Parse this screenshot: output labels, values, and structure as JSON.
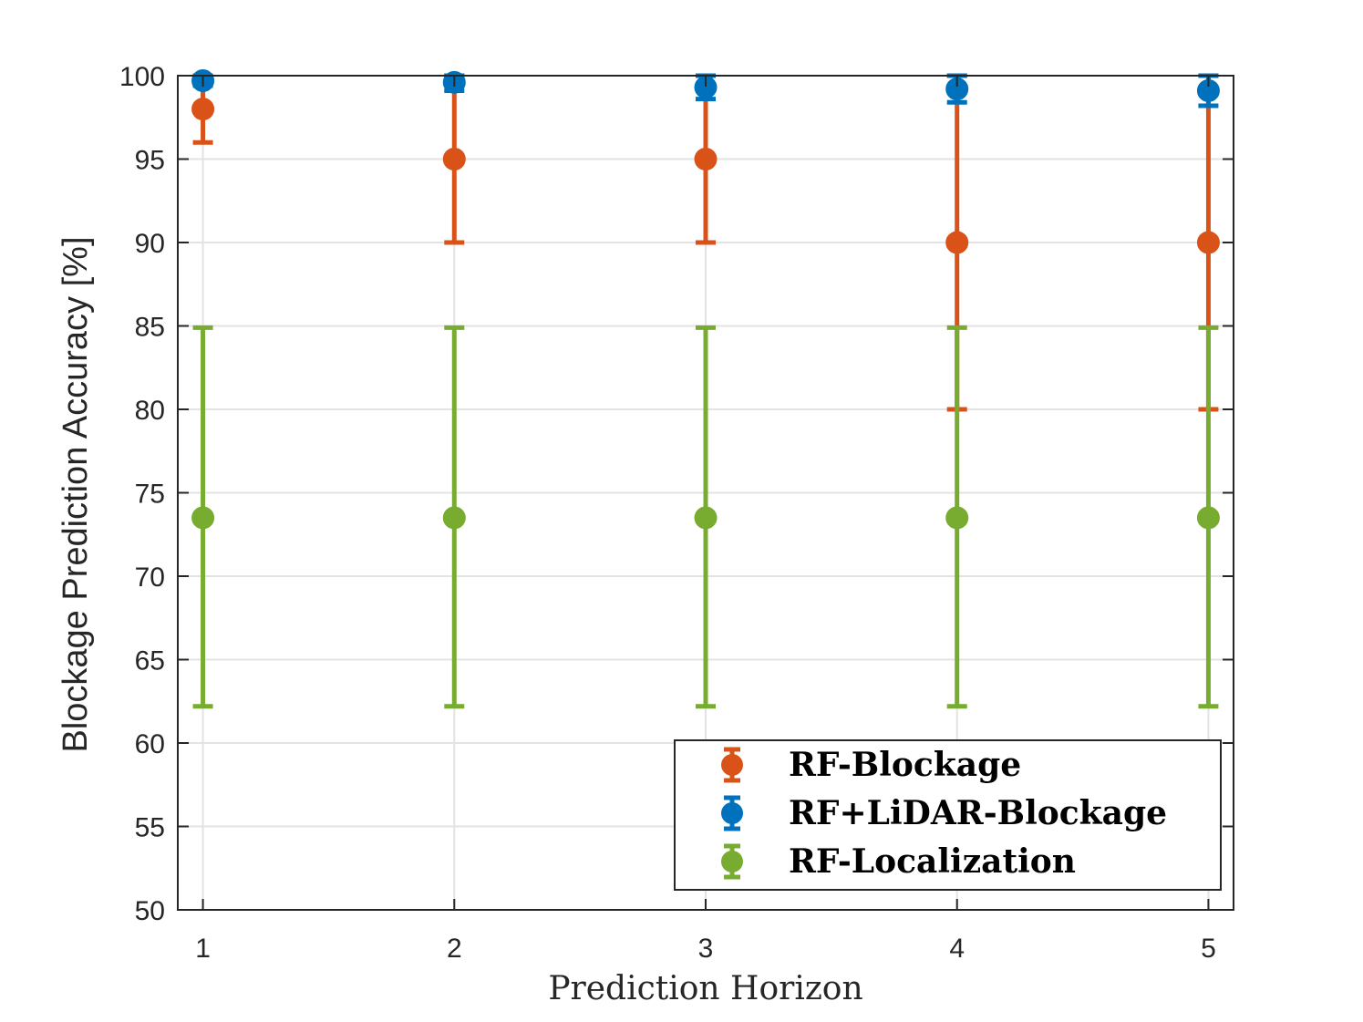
{
  "chart_data": {
    "type": "scatter",
    "title": "",
    "xlabel": "Prediction Horizon",
    "ylabel": "Blockage Prediction Accuracy [%]",
    "x": [
      1,
      2,
      3,
      4,
      5
    ],
    "xlim": [
      0.9,
      5.1
    ],
    "ylim": [
      50,
      100
    ],
    "xticks": [
      "1",
      "2",
      "3",
      "4",
      "5"
    ],
    "yticks": [
      "50",
      "55",
      "60",
      "65",
      "70",
      "75",
      "80",
      "85",
      "90",
      "95",
      "100"
    ],
    "grid": true,
    "legend_position": "bottom-right",
    "series": [
      {
        "name": "RF-Blockage",
        "color": "#D95319",
        "values": [
          98,
          95,
          95,
          90,
          90
        ],
        "lower": [
          96,
          90,
          90,
          80,
          80
        ],
        "upper": [
          100,
          100,
          100,
          100,
          100
        ]
      },
      {
        "name": "RF+LiDAR-Blockage",
        "color": "#0072BD",
        "values": [
          99.7,
          99.6,
          99.3,
          99.2,
          99.1
        ],
        "lower": [
          99.4,
          99.1,
          98.6,
          98.4,
          98.2
        ],
        "upper": [
          100,
          100,
          100,
          100,
          100
        ]
      },
      {
        "name": "RF-Localization",
        "color": "#77AC30",
        "values": [
          73.5,
          73.5,
          73.5,
          73.5,
          73.5
        ],
        "lower": [
          62.2,
          62.2,
          62.2,
          62.2,
          62.2
        ],
        "upper": [
          84.9,
          84.9,
          84.9,
          84.9,
          84.9
        ]
      }
    ]
  }
}
